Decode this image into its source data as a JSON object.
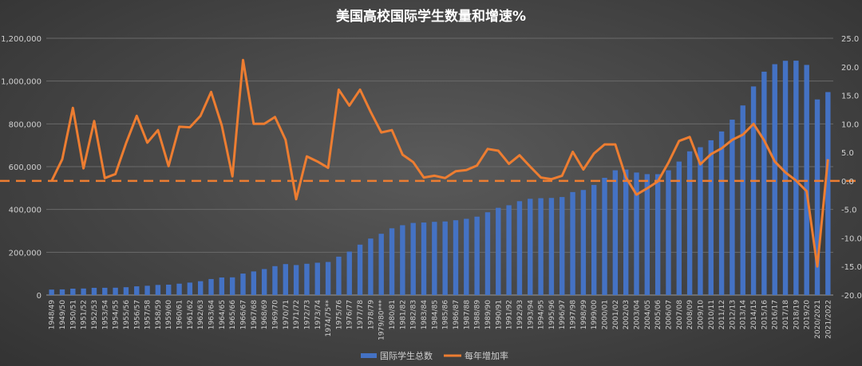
{
  "chart_data": {
    "type": "bar",
    "title": "美国高校国际学生数量和增速%",
    "categories": [
      "1948/49",
      "1949/50",
      "1950/51",
      "1951/52",
      "1952/53",
      "1953/54",
      "1954/55",
      "1955/56",
      "1956/57",
      "1957/58",
      "1958/59",
      "1959/60",
      "1960/61",
      "1961/62",
      "1962/63",
      "1963/64",
      "1964/65",
      "1965/66",
      "1966/67",
      "1967/68",
      "1968/69",
      "1969/70",
      "1970/71",
      "1971/72",
      "1972/73",
      "1973/74",
      "1974/75**",
      "1975/76",
      "1976/77",
      "1977/78",
      "1978/79",
      "1979/80***",
      "1980/81",
      "1981/82",
      "1982/83",
      "1983/84",
      "1984/85",
      "1985/86",
      "1986/87",
      "1987/88",
      "1988/89",
      "1989/90",
      "1990/91",
      "1991/92",
      "1992/93",
      "1993/94",
      "1994/95",
      "1995/96",
      "1996/97",
      "1997/98",
      "1998/99",
      "1999/00",
      "2000/01",
      "2001/02",
      "2002/03",
      "2003/04",
      "2004/05",
      "2005/06",
      "2006/07",
      "2007/08",
      "2008/09",
      "2009/10",
      "2010/11",
      "2011/12",
      "2012/13",
      "2013/14",
      "2014/15",
      "2015/16",
      "2016/17",
      "2017/18",
      "2018/19",
      "2019/20",
      "2020/2021",
      "2021/2022"
    ],
    "series": [
      {
        "name": "国际学生总数",
        "type": "bar",
        "axis": "left",
        "color": "#4472c4",
        "values": [
          25464,
          26433,
          29813,
          30462,
          33675,
          33833,
          34232,
          36494,
          40666,
          43391,
          47245,
          48486,
          53107,
          58086,
          64705,
          74814,
          82045,
          82709,
          100262,
          110315,
          121362,
          134959,
          144708,
          140126,
          146097,
          151066,
          154580,
          179344,
          203068,
          235509,
          263938,
          286343,
          311882,
          326299,
          336985,
          338894,
          342113,
          343777,
          349609,
          356187,
          366354,
          386851,
          407529,
          419585,
          438618,
          449749,
          452635,
          453787,
          457984,
          481280,
          490933,
          514723,
          547867,
          582996,
          586323,
          572509,
          565039,
          564766,
          582984,
          623805,
          671616,
          690923,
          723277,
          764495,
          819644,
          886052,
          974926,
          1043839,
          1078822,
          1094792,
          1095299,
          1075496,
          914095,
          948519
        ]
      },
      {
        "name": "每年增加率",
        "type": "line",
        "axis": "right",
        "color": "#ed7d31",
        "values": [
          0,
          3.8,
          12.8,
          2.2,
          10.5,
          0.5,
          1.2,
          6.6,
          11.4,
          6.7,
          8.9,
          2.6,
          9.5,
          9.4,
          11.4,
          15.6,
          9.7,
          0.8,
          21.2,
          10.0,
          10.0,
          11.2,
          7.2,
          -3.2,
          4.3,
          3.4,
          2.3,
          16.0,
          13.2,
          16.0,
          12.1,
          8.5,
          8.9,
          4.6,
          3.3,
          0.6,
          0.9,
          0.5,
          1.7,
          1.9,
          2.7,
          5.6,
          5.3,
          3.0,
          4.5,
          2.5,
          0.6,
          0.3,
          0.9,
          5.1,
          2.0,
          4.8,
          6.4,
          6.4,
          0.6,
          -2.4,
          -1.3,
          -0.1,
          3.2,
          7.0,
          7.7,
          2.9,
          4.7,
          5.7,
          7.2,
          8.1,
          10.0,
          7.1,
          3.4,
          1.5,
          0.05,
          -1.8,
          -15.0,
          3.8
        ]
      }
    ],
    "y_left": {
      "min": 0,
      "max": 1200000,
      "step": 200000,
      "ticks": [
        "0",
        "200,000",
        "400,000",
        "600,000",
        "800,000",
        "1,000,000",
        "1,200,000"
      ]
    },
    "y_right": {
      "min": -20,
      "max": 25,
      "step": 5,
      "ticks": [
        "-20.0",
        "-15.0",
        "-10.0",
        "-5.0",
        "0.0",
        "5.0",
        "10.0",
        "15.0",
        "20.0",
        "25.0"
      ]
    },
    "reference_line": {
      "axis": "right",
      "value": 0,
      "style": "dashed",
      "color": "#ed7d31"
    },
    "grid": true,
    "legend_position": "bottom"
  }
}
